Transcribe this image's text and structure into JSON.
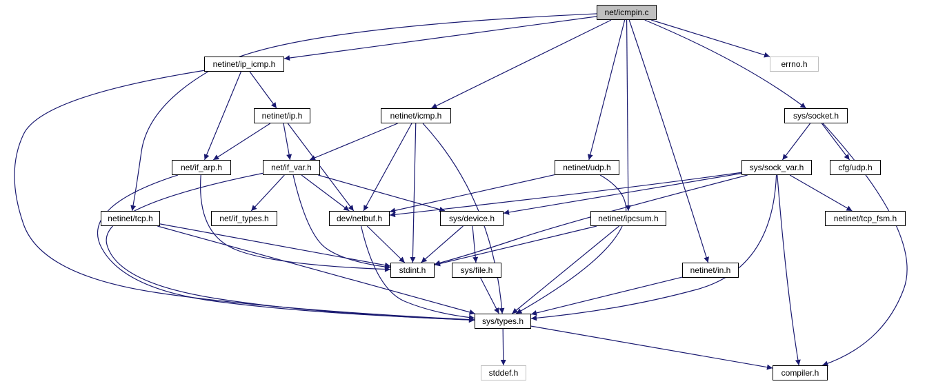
{
  "graph": {
    "edge_color": "#191970",
    "root_fill": "#bfbfbf",
    "external_border": "#bfbfbf",
    "nodes": [
      {
        "id": "icmpin",
        "label": "net/icmpin.c",
        "kind": "root"
      },
      {
        "id": "ip_icmp",
        "label": "netinet/ip_icmp.h",
        "kind": "file"
      },
      {
        "id": "errno",
        "label": "errno.h",
        "kind": "ext"
      },
      {
        "id": "ip",
        "label": "netinet/ip.h",
        "kind": "file"
      },
      {
        "id": "icmp",
        "label": "netinet/icmp.h",
        "kind": "file"
      },
      {
        "id": "socket",
        "label": "sys/socket.h",
        "kind": "file"
      },
      {
        "id": "if_arp",
        "label": "net/if_arp.h",
        "kind": "file"
      },
      {
        "id": "if_var",
        "label": "net/if_var.h",
        "kind": "file"
      },
      {
        "id": "udp",
        "label": "netinet/udp.h",
        "kind": "file"
      },
      {
        "id": "sock_var",
        "label": "sys/sock_var.h",
        "kind": "file"
      },
      {
        "id": "cfg_udp",
        "label": "cfg/udp.h",
        "kind": "file"
      },
      {
        "id": "tcp",
        "label": "netinet/tcp.h",
        "kind": "file"
      },
      {
        "id": "if_types",
        "label": "net/if_types.h",
        "kind": "file"
      },
      {
        "id": "netbuf",
        "label": "dev/netbuf.h",
        "kind": "file"
      },
      {
        "id": "device",
        "label": "sys/device.h",
        "kind": "file"
      },
      {
        "id": "ipcsum",
        "label": "netinet/ipcsum.h",
        "kind": "file"
      },
      {
        "id": "tcp_fsm",
        "label": "netinet/tcp_fsm.h",
        "kind": "file"
      },
      {
        "id": "stdint",
        "label": "stdint.h",
        "kind": "file"
      },
      {
        "id": "file",
        "label": "sys/file.h",
        "kind": "file"
      },
      {
        "id": "in",
        "label": "netinet/in.h",
        "kind": "file"
      },
      {
        "id": "types",
        "label": "sys/types.h",
        "kind": "file"
      },
      {
        "id": "stddef",
        "label": "stddef.h",
        "kind": "ext"
      },
      {
        "id": "compiler",
        "label": "compiler.h",
        "kind": "file"
      }
    ],
    "edges": [
      [
        "icmpin",
        "ip_icmp"
      ],
      [
        "icmpin",
        "errno"
      ],
      [
        "icmpin",
        "icmp"
      ],
      [
        "icmpin",
        "socket"
      ],
      [
        "icmpin",
        "udp"
      ],
      [
        "icmpin",
        "tcp"
      ],
      [
        "icmpin",
        "ipcsum"
      ],
      [
        "icmpin",
        "in"
      ],
      [
        "ip_icmp",
        "ip"
      ],
      [
        "ip_icmp",
        "if_arp"
      ],
      [
        "ip_icmp",
        "types"
      ],
      [
        "ip",
        "if_arp"
      ],
      [
        "ip",
        "if_var"
      ],
      [
        "ip",
        "netbuf"
      ],
      [
        "icmp",
        "if_var"
      ],
      [
        "icmp",
        "netbuf"
      ],
      [
        "icmp",
        "stdint"
      ],
      [
        "icmp",
        "types"
      ],
      [
        "socket",
        "sock_var"
      ],
      [
        "socket",
        "cfg_udp"
      ],
      [
        "socket",
        "compiler"
      ],
      [
        "if_arp",
        "stdint"
      ],
      [
        "if_arp",
        "types"
      ],
      [
        "if_var",
        "if_types"
      ],
      [
        "if_var",
        "netbuf"
      ],
      [
        "if_var",
        "device"
      ],
      [
        "if_var",
        "stdint"
      ],
      [
        "if_var",
        "types"
      ],
      [
        "udp",
        "netbuf"
      ],
      [
        "udp",
        "types"
      ],
      [
        "sock_var",
        "netbuf"
      ],
      [
        "sock_var",
        "device"
      ],
      [
        "sock_var",
        "stdint"
      ],
      [
        "sock_var",
        "tcp_fsm"
      ],
      [
        "sock_var",
        "types"
      ],
      [
        "sock_var",
        "compiler"
      ],
      [
        "tcp",
        "stdint"
      ],
      [
        "tcp",
        "types"
      ],
      [
        "netbuf",
        "stdint"
      ],
      [
        "netbuf",
        "types"
      ],
      [
        "device",
        "stdint"
      ],
      [
        "device",
        "file"
      ],
      [
        "ipcsum",
        "stdint"
      ],
      [
        "ipcsum",
        "types"
      ],
      [
        "file",
        "types"
      ],
      [
        "in",
        "types"
      ],
      [
        "types",
        "stddef"
      ],
      [
        "types",
        "compiler"
      ]
    ]
  }
}
